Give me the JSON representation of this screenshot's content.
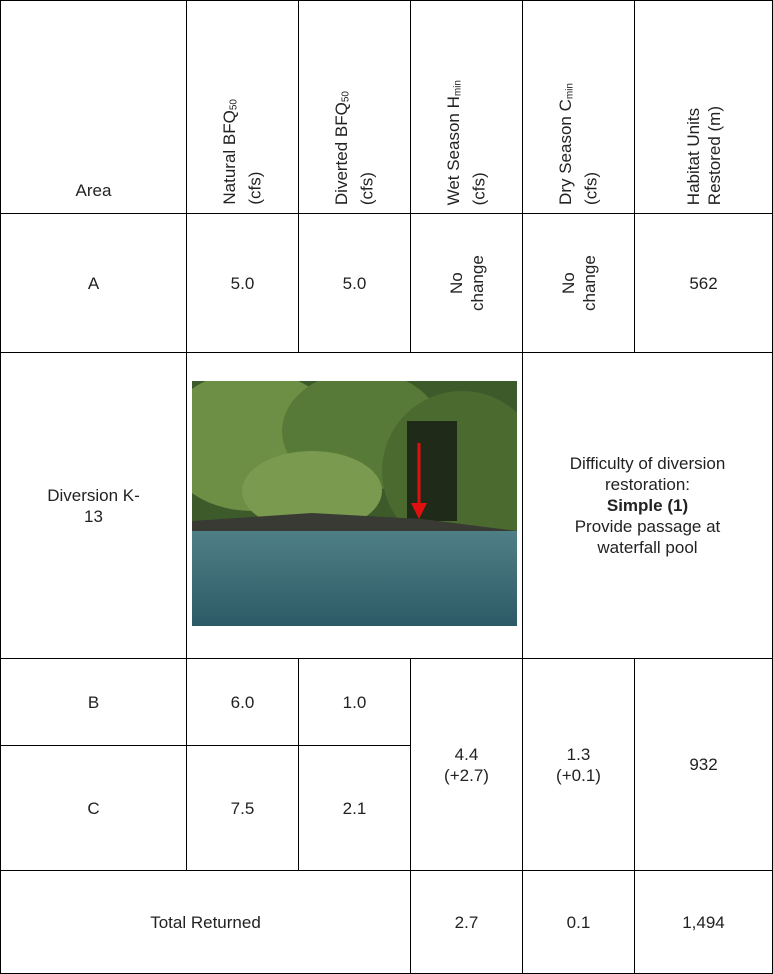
{
  "table": {
    "header": [
      {
        "label": "Area"
      },
      {
        "label": "Natural BFQ",
        "sub": "50",
        "line2": "(cfs)"
      },
      {
        "label": "Diverted BFQ",
        "sub": "50",
        "line2": "(cfs)"
      },
      {
        "label": "Wet Season H",
        "sub": "min",
        "line2": "(cfs)"
      },
      {
        "label": "Dry Season C",
        "sub": "min",
        "line2": "(cfs)"
      },
      {
        "label": "Habitat Units",
        "line2": "Restored (m)"
      }
    ],
    "row_a": {
      "area": "A",
      "natural": "5.0",
      "diverted": "5.0",
      "wet": "No change",
      "dry": "No change",
      "habitat": "562"
    },
    "diversion": {
      "area": "Diversion K-13",
      "difficulty": "Difficulty of diversion restoration:",
      "rating": "Simple (1)",
      "action": "Provide passage at waterfall pool"
    },
    "row_b": {
      "area": "B",
      "natural": "6.0",
      "diverted": "1.0"
    },
    "row_c": {
      "area": "C",
      "natural": "7.5",
      "diverted": "2.1"
    },
    "merged_bc": {
      "wet": "4.4",
      "wet_change": "(+2.7)",
      "dry": "1.3",
      "dry_change": "(+0.1)",
      "habitat": "932"
    },
    "total": {
      "label": "Total Returned",
      "wet": "2.7",
      "dry": "0.1",
      "habitat": "1,494"
    }
  }
}
